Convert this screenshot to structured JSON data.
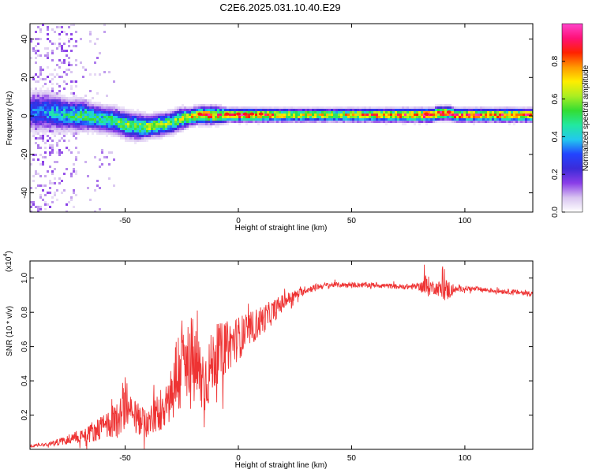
{
  "title": "C2E6.2025.031.10.40.E29",
  "chart_data": [
    {
      "type": "heatmap",
      "xlabel": "Height of straight line (km)",
      "ylabel": "Frequency (Hz)",
      "xlim": [
        -92,
        130
      ],
      "ylim": [
        -50,
        48
      ],
      "x_ticks": [
        -50,
        0,
        50,
        100
      ],
      "x_tick_labels": [
        "-50",
        "0",
        "50",
        "100"
      ],
      "y_ticks": [
        -40,
        -20,
        0,
        20,
        40
      ],
      "y_tick_labels": [
        "-40",
        "-20",
        "0",
        "20",
        "40"
      ],
      "grid": false,
      "colorbar": {
        "label": "Normalized spectral amplitude",
        "range": [
          0.0,
          1.0
        ],
        "ticks": [
          0.0,
          0.2,
          0.4,
          0.6,
          0.8
        ],
        "tick_labels": [
          "0.0",
          "0.2",
          "0.4",
          "0.6",
          "0.8"
        ],
        "colors": [
          "#ffffff",
          "#d8c4f0",
          "#8a3ee8",
          "#3b2bd8",
          "#2244ff",
          "#22c8ee",
          "#22e8a0",
          "#33dd33",
          "#aaee22",
          "#ffee00",
          "#ff9900",
          "#ff2200",
          "#ff1177",
          "#ff44cc"
        ]
      },
      "ridge": {
        "x": [
          -92,
          -85,
          -80,
          -75,
          -70,
          -65,
          -60,
          -55,
          -50,
          -45,
          -40,
          -35,
          -30,
          -26,
          -22,
          -18,
          -15,
          -10,
          -5,
          0,
          5,
          10,
          15,
          20,
          30,
          40,
          50,
          60,
          70,
          80,
          83,
          85,
          88,
          90,
          93,
          95,
          100,
          110,
          120,
          130
        ],
        "y": [
          3,
          3,
          2,
          1,
          1,
          0,
          -1,
          -2,
          -4,
          -5,
          -5,
          -4,
          -3,
          -1,
          0,
          1,
          1,
          1,
          1,
          1,
          1,
          1,
          1,
          1,
          1,
          1,
          1,
          1,
          1,
          1,
          1,
          1,
          2,
          2,
          2,
          1,
          1,
          1,
          1,
          1
        ],
        "amplitude": [
          0.3,
          0.35,
          0.4,
          0.45,
          0.5,
          0.5,
          0.45,
          0.5,
          0.55,
          0.55,
          0.6,
          0.6,
          0.55,
          0.6,
          0.65,
          0.7,
          0.8,
          0.75,
          0.8,
          0.85,
          0.85,
          0.8,
          0.75,
          0.7,
          0.65,
          0.65,
          0.7,
          0.75,
          0.8,
          0.85,
          0.9,
          0.85,
          0.85,
          0.8,
          0.85,
          0.8,
          0.8,
          0.8,
          0.8,
          0.8
        ],
        "bandwidth": [
          9,
          9,
          8,
          7,
          7,
          6,
          6,
          6,
          6,
          6,
          5,
          5,
          5,
          5,
          4,
          4,
          4,
          4,
          3,
          3,
          3,
          3,
          3,
          3,
          3,
          3,
          3,
          3,
          3,
          3,
          3,
          3,
          3,
          3,
          3,
          3,
          3,
          3,
          3,
          3
        ]
      }
    },
    {
      "type": "line",
      "xlabel": "Height of straight line (km)",
      "ylabel": "SNR (10 * v/v)",
      "y_multiplier_label": "(x10",
      "y_multiplier_exponent": "4",
      "xlim": [
        -92,
        130
      ],
      "ylim": [
        0.0,
        1.1
      ],
      "x_ticks": [
        -50,
        0,
        50,
        100
      ],
      "x_tick_labels": [
        "-50",
        "0",
        "50",
        "100"
      ],
      "y_ticks": [
        0.2,
        0.4,
        0.6,
        0.8,
        1.0
      ],
      "y_tick_labels": [
        "0.2",
        "0.4",
        "0.6",
        "0.8",
        "1.0"
      ],
      "grid": false,
      "series": [
        {
          "name": "SNR",
          "color": "#ee3333",
          "x": [
            -92,
            -85,
            -80,
            -75,
            -70,
            -65,
            -60,
            -55,
            -52,
            -50,
            -48,
            -45,
            -40,
            -35,
            -30,
            -28,
            -25,
            -22,
            -20,
            -18,
            -15,
            -12,
            -10,
            -5,
            0,
            5,
            10,
            15,
            20,
            25,
            30,
            35,
            40,
            45,
            50,
            60,
            70,
            80,
            83,
            85,
            88,
            90,
            93,
            95,
            100,
            110,
            120,
            130
          ],
          "y": [
            0.02,
            0.03,
            0.04,
            0.06,
            0.08,
            0.1,
            0.13,
            0.16,
            0.2,
            0.3,
            0.2,
            0.18,
            0.15,
            0.22,
            0.32,
            0.4,
            0.5,
            0.45,
            0.5,
            0.45,
            0.4,
            0.48,
            0.55,
            0.6,
            0.65,
            0.7,
            0.75,
            0.8,
            0.86,
            0.9,
            0.93,
            0.95,
            0.96,
            0.96,
            0.96,
            0.96,
            0.95,
            0.95,
            0.95,
            0.95,
            0.94,
            0.93,
            0.93,
            0.93,
            0.94,
            0.93,
            0.92,
            0.91
          ],
          "fluctuation": [
            0.01,
            0.01,
            0.02,
            0.03,
            0.04,
            0.06,
            0.07,
            0.09,
            0.12,
            0.18,
            0.12,
            0.1,
            0.08,
            0.12,
            0.18,
            0.25,
            0.3,
            0.25,
            0.28,
            0.25,
            0.2,
            0.2,
            0.18,
            0.15,
            0.13,
            0.1,
            0.09,
            0.07,
            0.05,
            0.03,
            0.02,
            0.02,
            0.015,
            0.015,
            0.015,
            0.015,
            0.015,
            0.02,
            0.08,
            0.04,
            0.04,
            0.07,
            0.06,
            0.02,
            0.015,
            0.015,
            0.015,
            0.015
          ]
        }
      ]
    }
  ]
}
